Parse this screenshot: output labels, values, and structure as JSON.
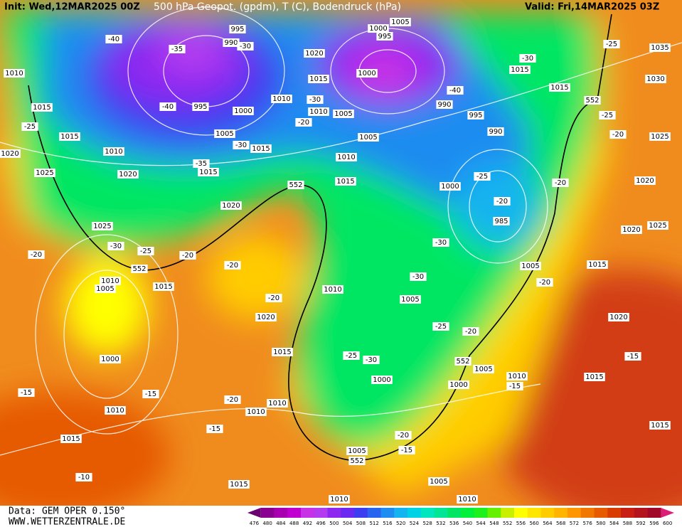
{
  "header": {
    "init": "Init: Wed,12MAR2025 00Z",
    "title": "500 hPa Geopot. (gpdm), T (C), Bodendruck (hPa)",
    "valid": "Valid: Fri,14MAR2025 03Z"
  },
  "footer": {
    "data_source": "Data: GEM OPER 0.150°",
    "website": "WWW.WETTERZENTRALE.DE"
  },
  "map": {
    "isobar_labels": [
      "1035",
      "1030",
      "1025",
      "1020",
      "1020",
      "1025",
      "1015",
      "1020",
      "1015",
      "1015",
      "1005",
      "1005",
      "1010",
      "1000",
      "1005",
      "1010",
      "1010",
      "1015",
      "1005",
      "1000",
      "1010",
      "1010",
      "1015",
      "1020",
      "1010",
      "1005",
      "1015",
      "1010",
      "1005",
      "1000",
      "1010",
      "1015",
      "1025",
      "1020",
      "1015",
      "1010",
      "1005",
      "1005",
      "1010",
      "1010",
      "1000",
      "1005",
      "1015",
      "1015",
      "1020",
      "1010",
      "1015",
      "1015",
      "1010",
      "1025",
      "1020",
      "995",
      "990",
      "995",
      "1020",
      "1015",
      "1000",
      "995",
      "1005",
      "1000",
      "990",
      "995",
      "990",
      "1000",
      "985",
      "1015",
      "1015"
    ],
    "temperature_labels": [
      "-40",
      "-35",
      "-30",
      "-40",
      "-35",
      "-30",
      "-30",
      "-20",
      "-40",
      "-25",
      "-20",
      "-20",
      "-30",
      "-25",
      "-25",
      "-20",
      "-25",
      "-30",
      "-25",
      "-20",
      "-20",
      "-20",
      "-20",
      "-30",
      "-30",
      "-25",
      "-20",
      "-20",
      "-25",
      "-30",
      "-20",
      "-15",
      "-15",
      "-15",
      "-15",
      "-15",
      "-20",
      "-15",
      "-10"
    ],
    "contour_labels": [
      "552",
      "552",
      "552",
      "552",
      "552"
    ]
  },
  "colorbar": {
    "levels": [
      476,
      480,
      484,
      488,
      492,
      496,
      500,
      504,
      508,
      512,
      516,
      520,
      524,
      528,
      532,
      536,
      540,
      544,
      548,
      552,
      556,
      560,
      564,
      568,
      572,
      576,
      580,
      584,
      588,
      592,
      596,
      600
    ],
    "colors": [
      "#6a0070",
      "#8a0090",
      "#a800b0",
      "#c000d0",
      "#c832e6",
      "#b43cf0",
      "#8c28f0",
      "#6a28f0",
      "#3c3cf0",
      "#2864f0",
      "#1e8cf0",
      "#14b4f0",
      "#00d2e6",
      "#00e6be",
      "#00e696",
      "#00e664",
      "#00f03c",
      "#1ef01e",
      "#64f000",
      "#c8f000",
      "#ffff00",
      "#ffe600",
      "#ffcc00",
      "#ffb400",
      "#ff9600",
      "#f07800",
      "#e65a00",
      "#d83c00",
      "#c81e14",
      "#b4141e",
      "#a00a28",
      "#dc1e78"
    ]
  }
}
